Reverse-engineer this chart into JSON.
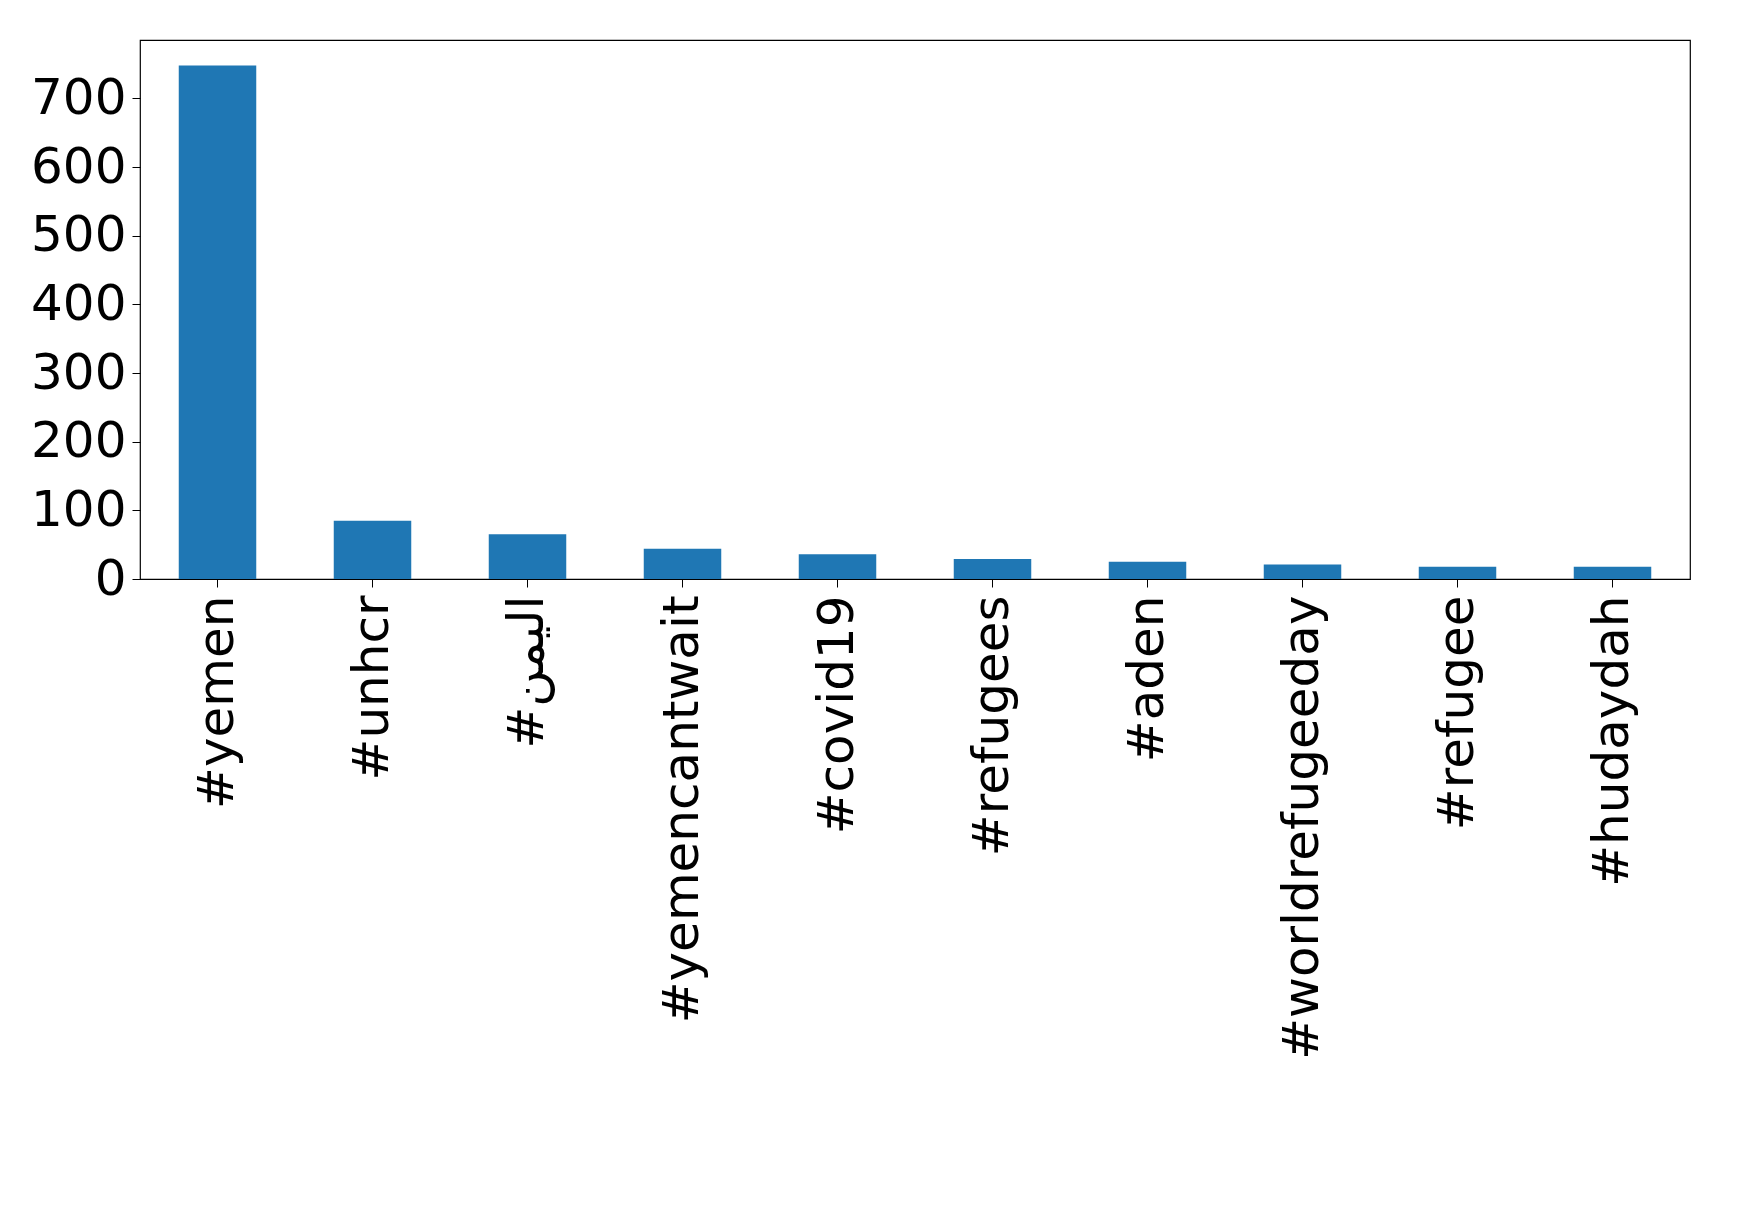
{
  "chart_data": {
    "type": "bar",
    "categories": [
      "#yemen",
      "#unhcr",
      "#اليمن",
      "#yemencantwait",
      "#covid19",
      "#refugees",
      "#aden",
      "#worldrefugeeday",
      "#refugee",
      "#hudaydah"
    ],
    "values": [
      748,
      85,
      65,
      44,
      36,
      29,
      25,
      21,
      18,
      18
    ],
    "color": "#1f77b4",
    "ylim": [
      0,
      785
    ],
    "yticks": [
      0,
      100,
      200,
      300,
      400,
      500,
      600,
      700
    ],
    "grid": false
  }
}
